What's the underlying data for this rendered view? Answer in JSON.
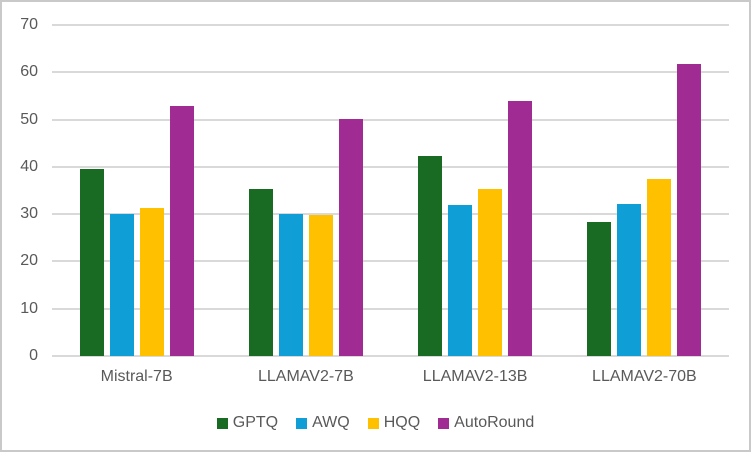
{
  "chart_data": {
    "type": "bar",
    "title": "",
    "xlabel": "",
    "ylabel": "",
    "categories": [
      "Mistral-7B",
      "LLAMAV2-7B",
      "LLAMAV2-13B",
      "LLAMAV2-70B"
    ],
    "series": [
      {
        "name": "GPTQ",
        "color": "#196B24",
        "values": [
          39.5,
          35.3,
          42.4,
          28.3
        ]
      },
      {
        "name": "AWQ",
        "color": "#0F9ED5",
        "values": [
          30.0,
          30.0,
          32.0,
          32.2
        ]
      },
      {
        "name": "HQQ",
        "color": "#FFC000",
        "values": [
          31.3,
          29.8,
          35.3,
          37.4
        ]
      },
      {
        "name": "AutoRound",
        "color": "#A02B93",
        "values": [
          52.9,
          50.2,
          54.0,
          61.7
        ]
      }
    ],
    "ylim": [
      0,
      70
    ],
    "yticks": [
      0,
      10,
      20,
      30,
      40,
      50,
      60,
      70
    ],
    "grid": true,
    "legend_position": "bottom"
  },
  "colors": {
    "gridline": "#D9D9D9",
    "axis_text": "#595959",
    "frame_border": "#C9C9C9",
    "background": "#FFFFFF"
  }
}
